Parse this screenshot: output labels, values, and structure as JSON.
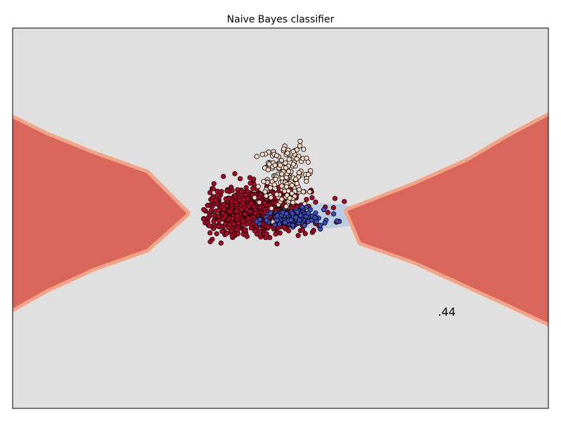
{
  "chart_data": {
    "type": "scatter",
    "title": "Naive Bayes classifier",
    "xlabel": "",
    "ylabel": "",
    "xlim": [
      -4.0,
      4.0
    ],
    "ylim": [
      -4.0,
      4.0
    ],
    "grid": false,
    "legend": "none",
    "show_ticks": false,
    "annotations": [
      {
        "text": ".44",
        "x": 2.35,
        "y": -2.05
      }
    ],
    "colors": {
      "background_region": "#e0e0e0",
      "positive_region": "#d9665b",
      "boundary_band": "#f3a487",
      "blue_region": "#9fbce9",
      "class_0_points": "#b40426",
      "class_1_points": "#f7d9c4",
      "class_2_points": "#3b4cc0",
      "marker_edge": "#000000"
    },
    "decision_regions": [
      {
        "label": "left",
        "color": "positive_region",
        "polygon": [
          [
            -4.0,
            2.1
          ],
          [
            -3.5,
            1.75
          ],
          [
            -2.8,
            1.35
          ],
          [
            -2.0,
            0.95
          ],
          [
            -1.4,
            0.1
          ],
          [
            -2.0,
            -0.65
          ],
          [
            -2.8,
            -1.05
          ],
          [
            -3.5,
            -1.5
          ],
          [
            -4.0,
            -1.9
          ]
        ]
      },
      {
        "label": "right",
        "color": "positive_region",
        "polygon": [
          [
            4.0,
            2.15
          ],
          [
            3.4,
            1.7
          ],
          [
            2.8,
            1.2
          ],
          [
            2.0,
            0.7
          ],
          [
            1.0,
            0.15
          ],
          [
            1.2,
            -0.5
          ],
          [
            2.0,
            -0.9
          ],
          [
            2.7,
            -1.35
          ],
          [
            3.4,
            -1.8
          ],
          [
            4.0,
            -2.2
          ]
        ]
      }
    ],
    "series": [
      {
        "name": "",
        "color": "class_0_points",
        "cluster": {
          "center": [
            -0.4,
            0.15
          ],
          "std": [
            0.42,
            0.26
          ],
          "count": 720,
          "xlim": [
            -1.15,
            1.35
          ],
          "ylim": [
            -0.55,
            1.0
          ]
        }
      },
      {
        "name": "",
        "color": "class_1_points",
        "cluster": {
          "center": [
            0.1,
            0.9
          ],
          "std": [
            0.22,
            0.35
          ],
          "count": 170,
          "xlim": [
            -0.4,
            0.45
          ],
          "ylim": [
            -1.0,
            1.7
          ]
        }
      },
      {
        "name": "",
        "color": "class_2_points",
        "cluster": {
          "center": [
            0.15,
            0.0
          ],
          "std": [
            0.25,
            0.1
          ],
          "count": 110,
          "xlim": [
            -0.5,
            0.9
          ],
          "ylim": [
            -0.25,
            0.7
          ]
        }
      }
    ]
  }
}
